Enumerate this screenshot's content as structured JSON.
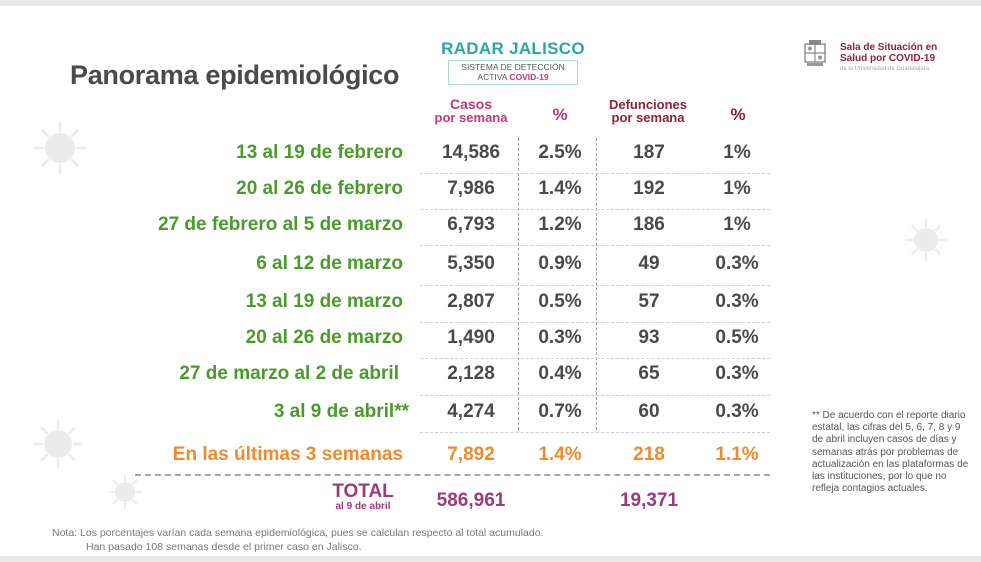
{
  "title": "Panorama epidemiológico",
  "radar": {
    "title": "RADAR JALISCO",
    "line1": "SISTEMA DE DETECCIÓN",
    "line2_prefix": "ACTIVA ",
    "line2_bold": "COVID-19"
  },
  "sala": {
    "line1": "Sala de Situación en",
    "line2": "Salud por COVID-19",
    "sub": "de la Universidad de Guadalajara"
  },
  "headers": {
    "casos_1": "Casos",
    "casos_2": "por semana",
    "pct_casos": "%",
    "def_1": "Defunciones",
    "def_2": "por semana",
    "pct_def": "%"
  },
  "rows": [
    {
      "label": "13 al 19 de febrero",
      "casos": "14,586",
      "pct_casos": "2.5%",
      "defunciones": "187",
      "pct_def": "1%"
    },
    {
      "label": "20 al 26 de febrero",
      "casos": "7,986",
      "pct_casos": "1.4%",
      "defunciones": "192",
      "pct_def": "1%"
    },
    {
      "label": "27 de febrero al 5 de marzo",
      "casos": "6,793",
      "pct_casos": "1.2%",
      "defunciones": "186",
      "pct_def": "1%"
    },
    {
      "label": "6 al 12 de marzo",
      "casos": "5,350",
      "pct_casos": "0.9%",
      "defunciones": "49",
      "pct_def": "0.3%"
    },
    {
      "label": "13 al 19 de marzo",
      "casos": "2,807",
      "pct_casos": "0.5%",
      "defunciones": "57",
      "pct_def": "0.3%"
    },
    {
      "label": "20 al 26 de marzo",
      "casos": "1,490",
      "pct_casos": "0.3%",
      "defunciones": "93",
      "pct_def": "0.5%"
    },
    {
      "label": "27 de marzo al 2 de abril",
      "casos": "2,128",
      "pct_casos": "0.4%",
      "defunciones": "65",
      "pct_def": "0.3%"
    },
    {
      "label": "3 al 9 de abril**",
      "casos": "4,274",
      "pct_casos": "0.7%",
      "defunciones": "60",
      "pct_def": "0.3%"
    }
  ],
  "summary": {
    "label": "En las últimas 3 semanas",
    "casos": "7,892",
    "pct_casos": "1.4%",
    "defunciones": "218",
    "pct_def": "1.1%"
  },
  "total": {
    "label": "TOTAL",
    "sub": "al 9 de abril",
    "casos": "586,961",
    "defunciones": "19,371"
  },
  "note": {
    "line1": "Nota: Los porcentajes varían cada semana epidemiológica, pues se calculan respecto al total acumulado.",
    "line2": "Han pasado 108 semanas desde el primer caso en Jalisco."
  },
  "side_note": "** De acuerdo con el reporte diario estatal, las cifras del 5, 6, 7, 8 y 9 de abril incluyen casos de días y semanas atrás por problemas de actualización en las plataformas de las instituciones, por lo que no refleja contagios actuales.",
  "colors": {
    "label_green": "#4a9a2c",
    "summary_orange": "#f08a2a",
    "total_purple": "#9c3a7a",
    "header_pink": "#c0387a",
    "header_dark": "#8b2236",
    "radar_teal": "#2aa6a0"
  },
  "icons": [
    "virus-icon",
    "udg-crest-icon"
  ]
}
